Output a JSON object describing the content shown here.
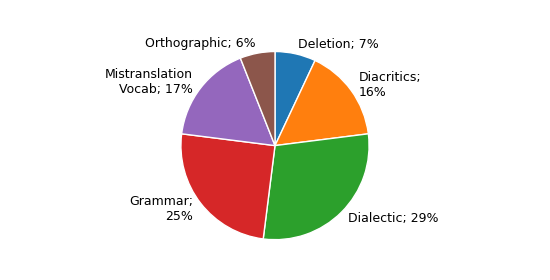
{
  "chart_data": {
    "type": "pie",
    "categories": [
      "Deletion; 7%",
      "Diacritics;\n16%",
      "Dialectic; 29%",
      "Grammar;\n25%",
      "Mistranslation\nVocab; 17%",
      "Orthographic; 6%"
    ],
    "values": [
      7,
      16,
      29,
      25,
      17,
      6
    ]
  }
}
